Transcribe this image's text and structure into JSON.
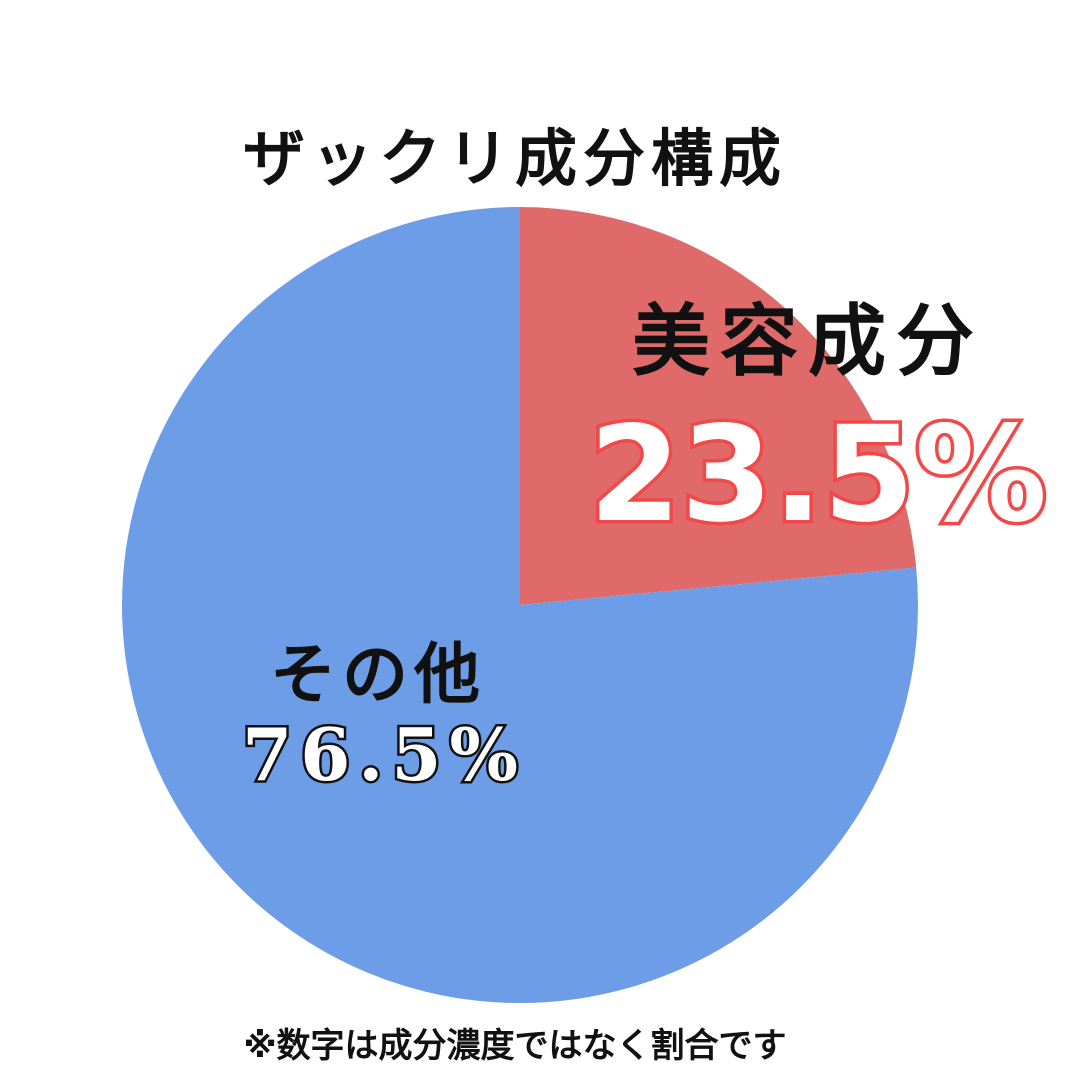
{
  "chart_data": {
    "type": "pie",
    "title": "ザックリ成分構成",
    "slices": [
      {
        "label": "美容成分",
        "value": 23.5,
        "value_label": "23.5%",
        "color": "#e06969"
      },
      {
        "label": "その他",
        "value": 76.5,
        "value_label": "76.5%",
        "color": "#6e9de8"
      }
    ],
    "start": "12 o'clock",
    "direction": "clockwise",
    "legend": "none",
    "footnote": "※数字は成分濃度ではなく割合です"
  }
}
